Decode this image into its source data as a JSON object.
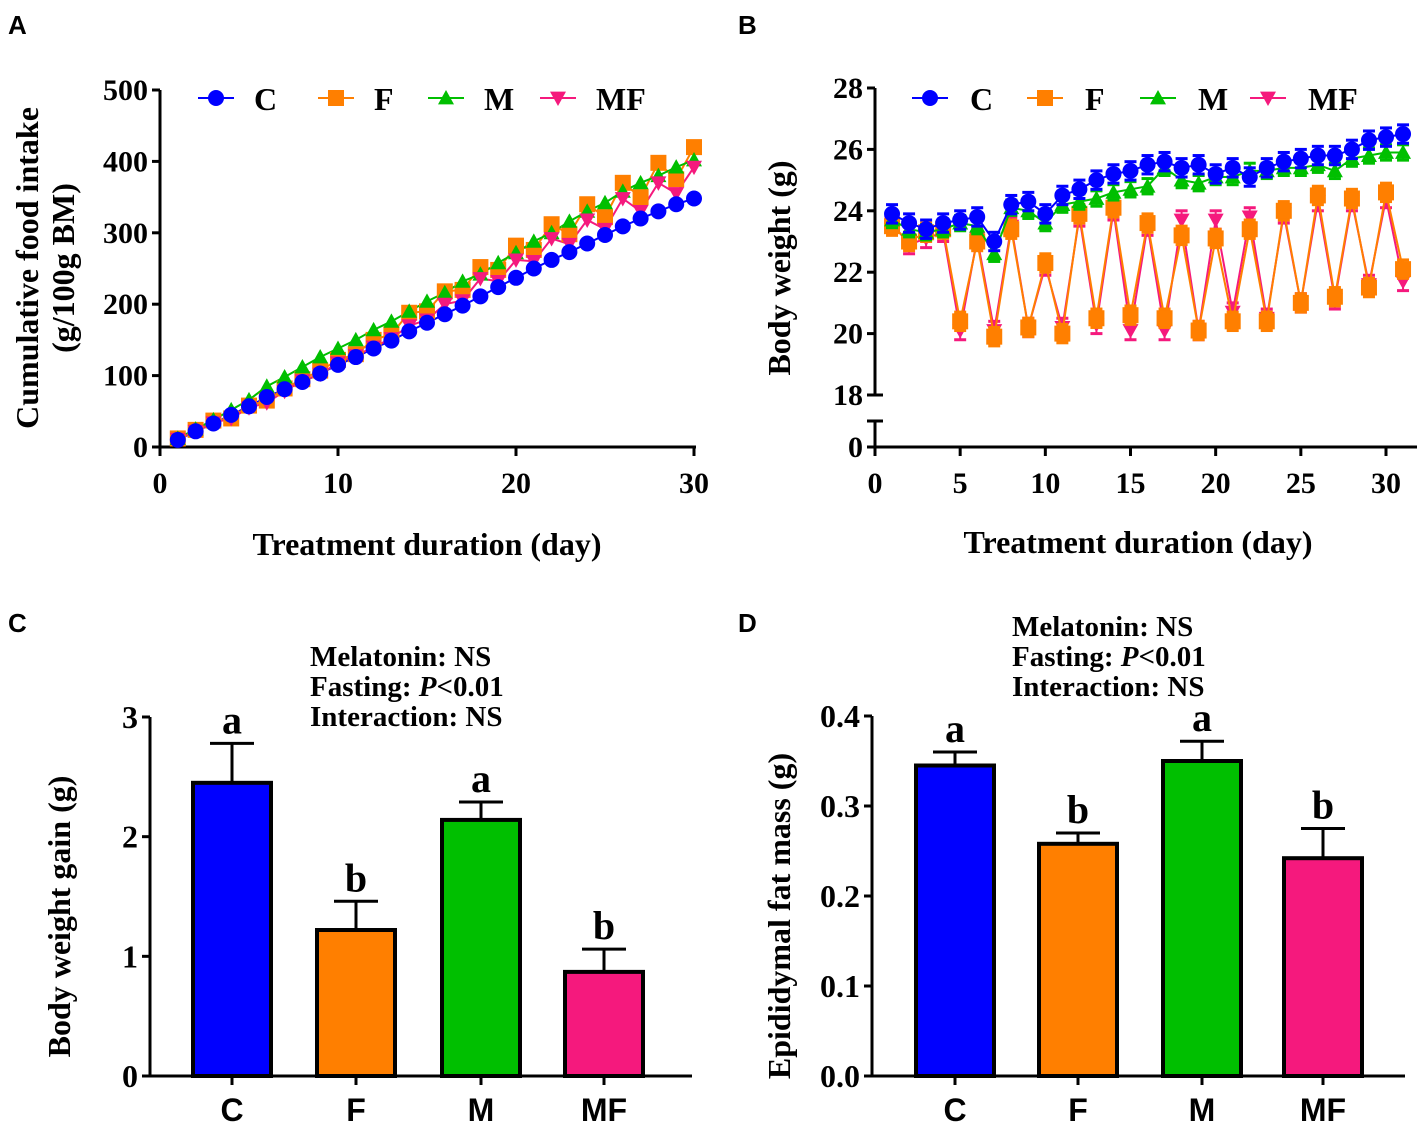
{
  "colors": {
    "C": "#0000ff",
    "F": "#ff7f00",
    "M": "#00bf00",
    "MF": "#f5197d",
    "axis": "#000000"
  },
  "chart_data": [
    {
      "panel": "A",
      "type": "line",
      "xlabel": "Treatment duration (day)",
      "ylabel": "Cumulative food intake (g/100g BM)",
      "ylabel_lines": [
        "Cumulative food intake",
        "(g/100g BM)"
      ],
      "xlim": [
        0,
        30
      ],
      "ylim": [
        0,
        500
      ],
      "xticks": [
        0,
        10,
        20,
        30
      ],
      "yticks": [
        0,
        100,
        200,
        300,
        400,
        500
      ],
      "legend": "top",
      "x": [
        1,
        2,
        3,
        4,
        5,
        6,
        7,
        8,
        9,
        10,
        11,
        12,
        13,
        14,
        15,
        16,
        17,
        18,
        19,
        20,
        21,
        22,
        23,
        24,
        25,
        26,
        27,
        28,
        29,
        30
      ],
      "series": [
        {
          "name": "C",
          "marker": "circle",
          "values": [
            10,
            22,
            33,
            45,
            57,
            70,
            81,
            91,
            103,
            115,
            126,
            138,
            149,
            162,
            174,
            186,
            198,
            211,
            224,
            237,
            250,
            262,
            273,
            285,
            297,
            309,
            320,
            330,
            340,
            348
          ]
        },
        {
          "name": "F",
          "marker": "square",
          "values": [
            12,
            24,
            37,
            40,
            58,
            65,
            82,
            95,
            107,
            122,
            130,
            150,
            158,
            188,
            190,
            218,
            220,
            252,
            248,
            282,
            276,
            312,
            298,
            340,
            322,
            370,
            350,
            398,
            375,
            420
          ]
        },
        {
          "name": "M",
          "marker": "triangle-up",
          "values": [
            12,
            25,
            38,
            52,
            66,
            85,
            98,
            112,
            126,
            138,
            150,
            164,
            176,
            190,
            204,
            216,
            232,
            242,
            258,
            272,
            288,
            300,
            316,
            330,
            342,
            358,
            370,
            380,
            392,
            402
          ]
        },
        {
          "name": "MF",
          "marker": "triangle-down",
          "values": [
            11,
            22,
            34,
            40,
            55,
            62,
            78,
            93,
            102,
            118,
            128,
            140,
            152,
            170,
            178,
            200,
            205,
            236,
            232,
            262,
            260,
            292,
            284,
            318,
            305,
            348,
            330,
            370,
            355,
            392
          ]
        }
      ]
    },
    {
      "panel": "B",
      "type": "line",
      "xlabel": "Treatment duration (day)",
      "ylabel": "Body weight (g)",
      "xlim": [
        0,
        31
      ],
      "ylim": [
        18,
        28
      ],
      "axis_break": true,
      "yticks": [
        0,
        18,
        20,
        22,
        24,
        26,
        28
      ],
      "xticks": [
        0,
        5,
        10,
        15,
        20,
        25,
        30
      ],
      "legend": "top",
      "x": [
        1,
        2,
        3,
        4,
        5,
        6,
        7,
        8,
        9,
        10,
        11,
        12,
        13,
        14,
        15,
        16,
        17,
        18,
        19,
        20,
        21,
        22,
        23,
        24,
        25,
        26,
        27,
        28,
        29,
        30,
        31
      ],
      "series": [
        {
          "name": "C",
          "marker": "circle",
          "error": 0.3,
          "values": [
            23.9,
            23.6,
            23.4,
            23.6,
            23.7,
            23.8,
            23.0,
            24.2,
            24.3,
            23.9,
            24.5,
            24.7,
            25.0,
            25.2,
            25.3,
            25.5,
            25.6,
            25.4,
            25.5,
            25.2,
            25.4,
            25.1,
            25.4,
            25.6,
            25.7,
            25.8,
            25.8,
            26.0,
            26.3,
            26.4,
            26.5
          ]
        },
        {
          "name": "F",
          "marker": "square",
          "error": 0.3,
          "values": [
            23.5,
            23.0,
            23.3,
            23.4,
            20.4,
            23.0,
            19.9,
            23.4,
            20.2,
            22.3,
            20.0,
            23.9,
            20.5,
            24.1,
            20.6,
            23.6,
            20.5,
            23.2,
            20.1,
            23.1,
            20.4,
            23.4,
            20.4,
            24.0,
            21.0,
            24.5,
            21.2,
            24.4,
            21.5,
            24.6,
            22.1
          ]
        },
        {
          "name": "M",
          "marker": "triangle-up",
          "error": 0.25,
          "values": [
            23.7,
            23.4,
            23.3,
            23.4,
            23.6,
            23.5,
            22.6,
            24.1,
            24.0,
            23.6,
            24.2,
            24.3,
            24.4,
            24.6,
            24.7,
            24.8,
            25.4,
            25.0,
            24.9,
            25.1,
            25.1,
            25.3,
            25.3,
            25.4,
            25.4,
            25.5,
            25.3,
            25.7,
            25.8,
            25.9,
            25.9
          ]
        },
        {
          "name": "MF",
          "marker": "triangle-down",
          "error": 0.3,
          "values": [
            23.6,
            22.9,
            23.1,
            23.3,
            20.1,
            23.1,
            20.1,
            23.5,
            20.2,
            22.2,
            20.2,
            23.8,
            20.3,
            24.0,
            20.1,
            23.5,
            20.1,
            23.7,
            20.1,
            23.7,
            20.7,
            23.8,
            20.5,
            23.9,
            21.0,
            24.3,
            21.1,
            24.3,
            21.6,
            24.4,
            21.7
          ]
        }
      ]
    },
    {
      "panel": "C",
      "type": "bar",
      "ylabel": "Body weight gain (g)",
      "categories": [
        "C",
        "F",
        "M",
        "MF"
      ],
      "values": [
        2.45,
        1.22,
        2.14,
        0.87
      ],
      "errors": [
        0.33,
        0.24,
        0.15,
        0.19
      ],
      "letters": [
        "a",
        "b",
        "a",
        "b"
      ],
      "ylim": [
        0,
        3
      ],
      "yticks": [
        0,
        1,
        2,
        3
      ],
      "annotations": [
        "Melatonin: NS",
        "Fasting: P<0.01",
        "Interaction: NS"
      ]
    },
    {
      "panel": "D",
      "type": "bar",
      "ylabel": "Epididymal fat mass (g)",
      "categories": [
        "C",
        "F",
        "M",
        "MF"
      ],
      "values": [
        0.345,
        0.258,
        0.35,
        0.242
      ],
      "errors": [
        0.015,
        0.012,
        0.022,
        0.033
      ],
      "letters": [
        "a",
        "b",
        "a",
        "b"
      ],
      "ylim": [
        0,
        0.4
      ],
      "yticks": [
        "0.0",
        "0.1",
        "0.2",
        "0.3",
        "0.4"
      ],
      "annotations": [
        "Melatonin: NS",
        "Fasting: P<0.01",
        "Interaction: NS"
      ]
    }
  ],
  "panels": {
    "A": "A",
    "B": "B",
    "C": "C",
    "D": "D"
  },
  "stats": {
    "melatonin": "Melatonin: NS",
    "fasting_prefix": "Fasting: ",
    "fasting_p": "P",
    "fasting_suffix": "<0.01",
    "interaction": "Interaction: NS"
  }
}
